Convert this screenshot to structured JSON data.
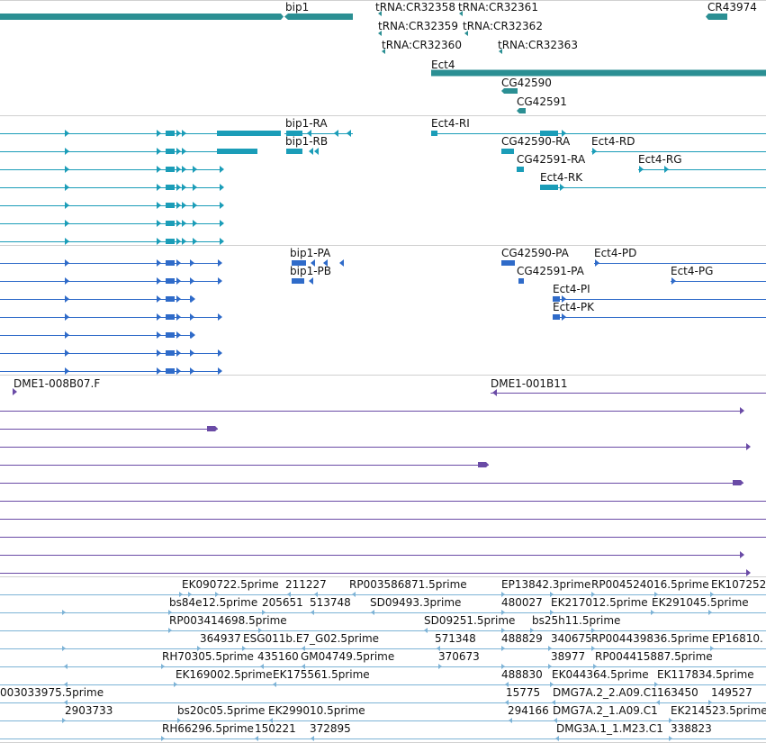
{
  "colors": {
    "gene": "#2b8f93",
    "ncrna": "#2b8f93",
    "transcript_cyan": "#1b9db8",
    "transcript_blue": "#2f6bc9",
    "cdna": "#6a4ba6",
    "est": "#7db3d6",
    "divider": "#d0d0d0"
  },
  "tracks": {
    "gene": {
      "labels": [
        {
          "id": "bip1",
          "text": "bip1"
        },
        {
          "id": "tRNA-CR32358",
          "text": "tRNA:CR32358"
        },
        {
          "id": "tRNA-CR32361",
          "text": "tRNA:CR32361"
        },
        {
          "id": "tRNA-CR32359",
          "text": "tRNA:CR32359"
        },
        {
          "id": "tRNA-CR32362",
          "text": "tRNA:CR32362"
        },
        {
          "id": "tRNA-CR32360",
          "text": "tRNA:CR32360"
        },
        {
          "id": "tRNA-CR32363",
          "text": "tRNA:CR32363"
        },
        {
          "id": "CR43974",
          "text": "CR43974"
        },
        {
          "id": "Ect4",
          "text": "Ect4"
        },
        {
          "id": "CG42590",
          "text": "CG42590"
        },
        {
          "id": "CG42591",
          "text": "CG42591"
        }
      ]
    },
    "transcripts_r": {
      "labels": [
        {
          "id": "bip1-RA",
          "text": "bip1-RA"
        },
        {
          "id": "bip1-RB",
          "text": "bip1-RB"
        },
        {
          "id": "Ect4-RI",
          "text": "Ect4-RI"
        },
        {
          "id": "CG42590-RA",
          "text": "CG42590-RA"
        },
        {
          "id": "Ect4-RD",
          "text": "Ect4-RD"
        },
        {
          "id": "CG42591-RA",
          "text": "CG42591-RA"
        },
        {
          "id": "Ect4-RG",
          "text": "Ect4-RG"
        },
        {
          "id": "Ect4-RK",
          "text": "Ect4-RK"
        }
      ]
    },
    "transcripts_p": {
      "labels": [
        {
          "id": "bip1-PA",
          "text": "bip1-PA"
        },
        {
          "id": "bip1-PB",
          "text": "bip1-PB"
        },
        {
          "id": "CG42590-PA",
          "text": "CG42590-PA"
        },
        {
          "id": "Ect4-PD",
          "text": "Ect4-PD"
        },
        {
          "id": "CG42591-PA",
          "text": "CG42591-PA"
        },
        {
          "id": "Ect4-PG",
          "text": "Ect4-PG"
        },
        {
          "id": "Ect4-PI",
          "text": "Ect4-PI"
        },
        {
          "id": "Ect4-PK",
          "text": "Ect4-PK"
        }
      ]
    },
    "cdna": {
      "labels": [
        {
          "id": "DME1-008B07F",
          "text": "DME1-008B07.F"
        },
        {
          "id": "DME1-001B11",
          "text": "DME1-001B11"
        }
      ]
    },
    "est": {
      "labels": [
        {
          "id": "EK090722",
          "text": "EK090722.5prime"
        },
        {
          "id": "n211227",
          "text": "211227"
        },
        {
          "id": "RP003586871",
          "text": "RP003586871.5prime"
        },
        {
          "id": "EP13842",
          "text": "EP13842.3prime"
        },
        {
          "id": "RP004524016",
          "text": "RP004524016.5prime"
        },
        {
          "id": "EK107252",
          "text": "EK107252"
        },
        {
          "id": "bs84e12",
          "text": "bs84e12.5prime"
        },
        {
          "id": "n205651",
          "text": "205651"
        },
        {
          "id": "n513748",
          "text": "513748"
        },
        {
          "id": "SD09493",
          "text": "SD09493.3prime"
        },
        {
          "id": "n480027",
          "text": "480027"
        },
        {
          "id": "EK217012",
          "text": "EK217012.5prime"
        },
        {
          "id": "EK291045",
          "text": "EK291045.5prime"
        },
        {
          "id": "RP003414698",
          "text": "RP003414698.5prime"
        },
        {
          "id": "SD09251",
          "text": "SD09251.5prime"
        },
        {
          "id": "bs25h11",
          "text": "bs25h11.5prime"
        },
        {
          "id": "n364937",
          "text": "364937"
        },
        {
          "id": "ESG011b",
          "text": "ESG011b.E7_G02.5prime"
        },
        {
          "id": "n571348",
          "text": "571348"
        },
        {
          "id": "n488829",
          "text": "488829"
        },
        {
          "id": "n340675",
          "text": "340675"
        },
        {
          "id": "RP004439836",
          "text": "RP004439836.5prime"
        },
        {
          "id": "EP16810",
          "text": "EP16810."
        },
        {
          "id": "RH70305",
          "text": "RH70305.5prime"
        },
        {
          "id": "n435160",
          "text": "435160"
        },
        {
          "id": "GM04749",
          "text": "GM04749.5prime"
        },
        {
          "id": "n370673",
          "text": "370673"
        },
        {
          "id": "n38977",
          "text": "38977"
        },
        {
          "id": "RP004415887",
          "text": "RP004415887.5prime"
        },
        {
          "id": "EK169002",
          "text": "EK169002.5prime"
        },
        {
          "id": "EK175561",
          "text": "EK175561.5prime"
        },
        {
          "id": "n488830",
          "text": "488830"
        },
        {
          "id": "EK044364",
          "text": "EK044364.5prime"
        },
        {
          "id": "EK117834",
          "text": "EK117834.5prime"
        },
        {
          "id": "n003033975",
          "text": "003033975.5prime"
        },
        {
          "id": "n15775",
          "text": "15775"
        },
        {
          "id": "DMG7A-2-2",
          "text": "DMG7A.2_2.A09.C1"
        },
        {
          "id": "n163450",
          "text": "163450"
        },
        {
          "id": "n149527",
          "text": "149527"
        },
        {
          "id": "n2903733",
          "text": "2903733"
        },
        {
          "id": "bs20c05",
          "text": "bs20c05.5prime"
        },
        {
          "id": "EK299010",
          "text": "EK299010.5prime"
        },
        {
          "id": "n294166",
          "text": "294166"
        },
        {
          "id": "DMG7A-2-1",
          "text": "DMG7A.2_1.A09.C1"
        },
        {
          "id": "EK214523",
          "text": "EK214523.5prime"
        },
        {
          "id": "RH66296",
          "text": "RH66296.5prime"
        },
        {
          "id": "n150221",
          "text": "150221"
        },
        {
          "id": "n372895",
          "text": "372895"
        },
        {
          "id": "DMG3A-1-1",
          "text": "DMG3A.1_1.M23.C1"
        },
        {
          "id": "n338823",
          "text": "338823"
        }
      ]
    }
  }
}
